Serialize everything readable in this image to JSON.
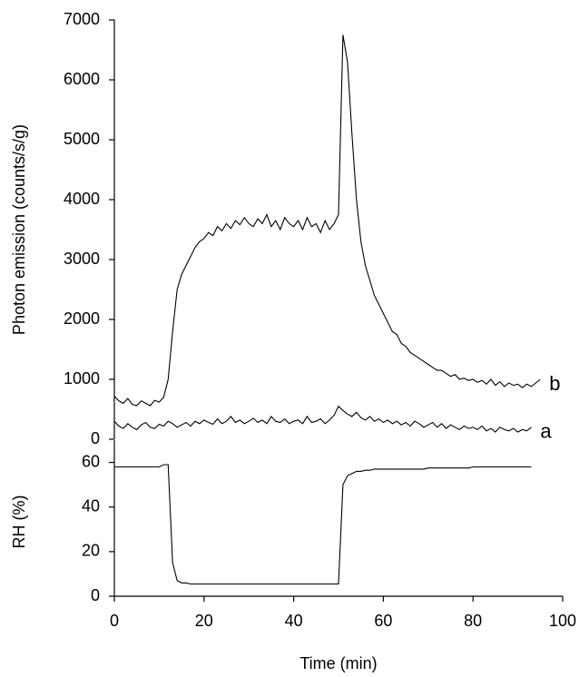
{
  "chart_data": [
    {
      "type": "line",
      "y_label": "Photon emission (counts/s/g)",
      "xlim": [
        0,
        100
      ],
      "ylim": [
        0,
        7000
      ],
      "yticks": [
        0,
        1000,
        2000,
        3000,
        4000,
        5000,
        6000,
        7000
      ],
      "x": [
        0,
        1,
        2,
        3,
        4,
        5,
        6,
        7,
        8,
        9,
        10,
        11,
        12,
        13,
        14,
        15,
        16,
        17,
        18,
        19,
        20,
        21,
        22,
        23,
        24,
        25,
        26,
        27,
        28,
        29,
        30,
        31,
        32,
        33,
        34,
        35,
        36,
        37,
        38,
        39,
        40,
        41,
        42,
        43,
        44,
        45,
        46,
        47,
        48,
        49,
        50,
        51,
        52,
        53,
        54,
        55,
        56,
        57,
        58,
        59,
        60,
        61,
        62,
        63,
        64,
        65,
        66,
        67,
        68,
        69,
        70,
        71,
        72,
        73,
        74,
        75,
        76,
        77,
        78,
        79,
        80,
        81,
        82,
        83,
        84,
        85,
        86,
        87,
        88,
        89,
        90,
        91,
        92,
        93,
        94,
        95
      ],
      "series": [
        {
          "name": "a",
          "color": "#000000",
          "values": [
            300,
            220,
            180,
            260,
            200,
            160,
            240,
            280,
            200,
            180,
            250,
            220,
            300,
            260,
            200,
            240,
            280,
            220,
            300,
            260,
            320,
            280,
            250,
            340,
            260,
            300,
            380,
            280,
            320,
            260,
            300,
            350,
            280,
            320,
            260,
            380,
            300,
            280,
            340,
            260,
            300,
            320,
            260,
            380,
            280,
            300,
            340,
            260,
            320,
            400,
            550,
            480,
            420,
            380,
            450,
            360,
            320,
            380,
            300,
            340,
            280,
            320,
            260,
            300,
            240,
            280,
            220,
            300,
            260,
            200,
            240,
            280,
            200,
            260,
            180,
            240,
            200,
            160,
            220,
            180,
            200,
            160,
            220,
            140,
            180,
            120,
            200,
            160,
            140,
            180,
            120,
            160,
            140,
            200,
            null,
            null
          ]
        },
        {
          "name": "b",
          "color": "#000000",
          "values": [
            720,
            640,
            600,
            680,
            580,
            560,
            640,
            600,
            560,
            650,
            620,
            700,
            1000,
            1800,
            2500,
            2750,
            2900,
            3050,
            3200,
            3300,
            3350,
            3450,
            3400,
            3550,
            3480,
            3600,
            3520,
            3650,
            3580,
            3700,
            3600,
            3550,
            3680,
            3600,
            3750,
            3550,
            3650,
            3500,
            3700,
            3600,
            3550,
            3650,
            3500,
            3700,
            3550,
            3600,
            3450,
            3650,
            3500,
            3600,
            3750,
            6750,
            6300,
            5100,
            4000,
            3300,
            2900,
            2650,
            2400,
            2250,
            2100,
            1950,
            1800,
            1750,
            1600,
            1550,
            1450,
            1400,
            1350,
            1300,
            1250,
            1200,
            1150,
            1150,
            1100,
            1050,
            1080,
            1000,
            1020,
            980,
            1000,
            950,
            980,
            920,
            1000,
            900,
            960,
            880,
            940,
            900,
            920,
            860,
            920,
            880,
            940,
            1000
          ]
        }
      ]
    },
    {
      "type": "line",
      "x_label": "Time (min)",
      "y_label": "RH (%)",
      "xlim": [
        0,
        100
      ],
      "xticks": [
        0,
        20,
        40,
        60,
        80,
        100
      ],
      "ylim": [
        0,
        70
      ],
      "yticks": [
        0,
        20,
        40,
        60
      ],
      "x": [
        0,
        1,
        2,
        3,
        4,
        5,
        6,
        7,
        8,
        9,
        10,
        11,
        12,
        13,
        14,
        15,
        16,
        17,
        18,
        19,
        20,
        21,
        22,
        23,
        24,
        25,
        26,
        27,
        28,
        29,
        30,
        31,
        32,
        33,
        34,
        35,
        36,
        37,
        38,
        39,
        40,
        41,
        42,
        43,
        44,
        45,
        46,
        47,
        48,
        49,
        50,
        51,
        52,
        53,
        54,
        55,
        56,
        57,
        58,
        59,
        60,
        61,
        62,
        63,
        64,
        65,
        66,
        67,
        68,
        69,
        70,
        71,
        72,
        73,
        74,
        75,
        76,
        77,
        78,
        79,
        80,
        81,
        82,
        83,
        84,
        85,
        86,
        87,
        88,
        89,
        90,
        91,
        92,
        93,
        94,
        95
      ],
      "series": [
        {
          "color": "#000000",
          "values": [
            58,
            58,
            58,
            58,
            58,
            58,
            58,
            58,
            58,
            58,
            58,
            59,
            59,
            15,
            7,
            6,
            6,
            5.5,
            5.5,
            5.5,
            5.5,
            5.5,
            5.5,
            5.5,
            5.5,
            5.5,
            5.5,
            5.5,
            5.5,
            5.5,
            5.5,
            5.5,
            5.5,
            5.5,
            5.5,
            5.5,
            5.5,
            5.5,
            5.5,
            5.5,
            5.5,
            5.5,
            5.5,
            5.5,
            5.5,
            5.5,
            5.5,
            5.5,
            5.5,
            5.5,
            5.5,
            50,
            54,
            55,
            56,
            56,
            56.5,
            56.5,
            57,
            57,
            57,
            57,
            57,
            57,
            57,
            57,
            57,
            57,
            57,
            57,
            57.5,
            57.5,
            57.5,
            57.5,
            57.5,
            57.5,
            57.5,
            57.5,
            57.5,
            57.5,
            58,
            58,
            58,
            58,
            58,
            58,
            58,
            58,
            58,
            58,
            58,
            58,
            58,
            58,
            null,
            null
          ]
        }
      ]
    }
  ]
}
